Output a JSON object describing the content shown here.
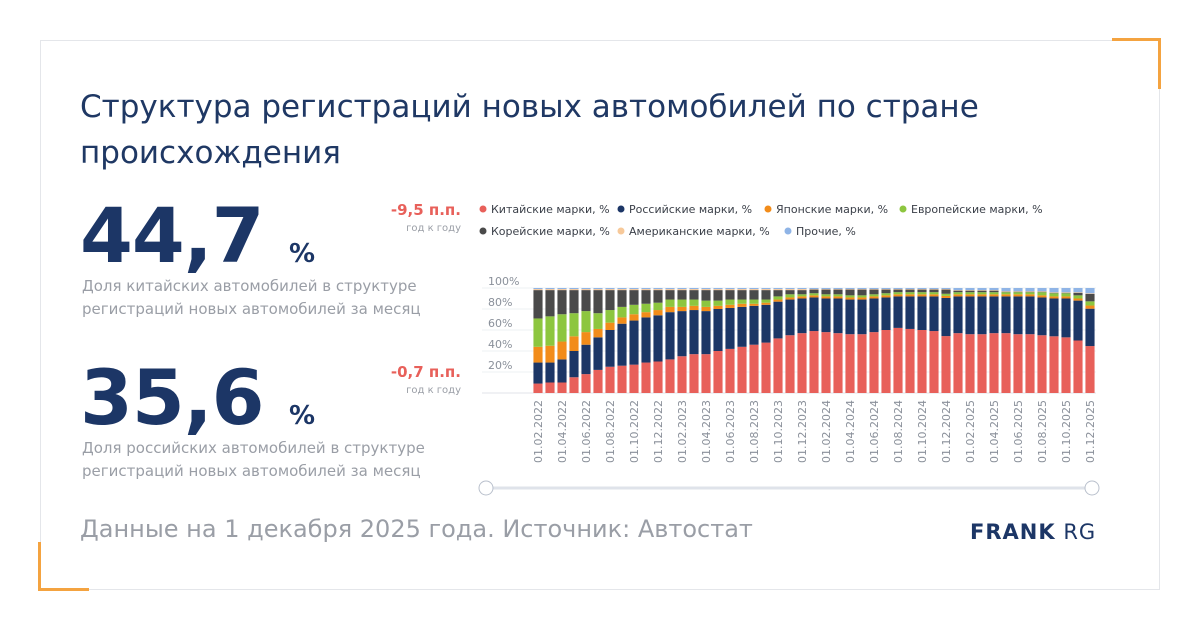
{
  "title_lines": [
    "Структура регистраций новых автомобилей по стране",
    "происхождения"
  ],
  "stats": [
    {
      "value": "44,7",
      "unit": "%",
      "description_lines": [
        "Доля китайских автомобилей в структуре",
        "регистраций новых автомобилей за месяц"
      ],
      "change": "-9,5 п.п.",
      "change_note": "год к году"
    },
    {
      "value": "35,6",
      "unit": "%",
      "description_lines": [
        "Доля российских автомобилей в структуре",
        "регистраций новых автомобилей за месяц"
      ],
      "change": "-0,7 п.п.",
      "change_note": "год к году"
    }
  ],
  "footer": "Данные на 1 декабря 2025 года. Источник: Автостат",
  "logo": {
    "bold": "FRANK",
    "light": "RG"
  },
  "chart_data": {
    "type": "stacked_bar",
    "categories": [
      "01.02.2022",
      null,
      "01.04.2022",
      null,
      "01.06.2022",
      null,
      "01.08.2022",
      null,
      "01.10.2022",
      null,
      "01.12.2022",
      null,
      "01.02.2023",
      null,
      "01.04.2023",
      null,
      "01.06.2023",
      null,
      "01.08.2023",
      null,
      "01.10.2023",
      null,
      "01.12.2023",
      null,
      "01.02.2024",
      null,
      "01.04.2024",
      null,
      "01.06.2024",
      null,
      "01.08.2024",
      null,
      "01.10.2024",
      null,
      "01.12.2024",
      null,
      "01.02.2025",
      null,
      "01.04.2025",
      null,
      "01.06.2025",
      null,
      "01.08.2025",
      null,
      "01.10.2025",
      null,
      "01.12.2025"
    ],
    "ylim": [
      0,
      100
    ],
    "yticks": [
      {
        "value": 20,
        "label": "20%"
      },
      {
        "value": 40,
        "label": "40%"
      },
      {
        "value": 60,
        "label": "60%"
      },
      {
        "value": 80,
        "label": "80%"
      },
      {
        "value": 100,
        "label": "100%"
      }
    ],
    "series": [
      {
        "name": "Китайские марки, %",
        "color": "#e8605a",
        "values": [
          9,
          10,
          10,
          15,
          18,
          22,
          25,
          26,
          27,
          29,
          30,
          32,
          35,
          37,
          37,
          40,
          42,
          44,
          46,
          48,
          52,
          55,
          57,
          59,
          58,
          57,
          56,
          56,
          58,
          60,
          62,
          61,
          60,
          59,
          54.2,
          57,
          56,
          56,
          57,
          57,
          56,
          56,
          55,
          54,
          53,
          50,
          44.7
        ]
      },
      {
        "name": "Российские марки, %",
        "color": "#1c3666",
        "values": [
          20,
          19,
          22,
          25,
          28,
          31,
          35,
          40,
          42,
          43,
          44,
          45,
          43,
          42,
          41,
          40,
          39,
          38,
          37,
          36,
          35,
          34,
          33,
          32,
          32,
          33,
          33,
          33,
          32,
          31,
          30,
          31,
          32,
          33,
          36.3,
          35,
          36,
          36,
          35,
          35,
          36,
          36,
          36,
          36,
          37,
          38,
          35.6
        ]
      },
      {
        "name": "Японские марки, %",
        "color": "#f28c1a",
        "values": [
          15,
          16,
          17,
          14,
          12,
          8,
          7,
          6,
          6,
          5,
          5,
          5,
          4,
          4,
          4,
          3,
          3,
          3,
          2,
          2,
          2,
          2,
          2,
          2,
          2,
          2,
          2,
          2,
          2,
          2,
          2,
          2,
          2,
          2,
          2,
          2,
          2,
          2,
          2,
          2,
          2,
          2,
          2,
          2,
          2,
          2,
          3
        ]
      },
      {
        "name": "Европейские марки, %",
        "color": "#8dc63f",
        "values": [
          27,
          28,
          26,
          22,
          20,
          15,
          12,
          10,
          9,
          8,
          7,
          7,
          7,
          6,
          6,
          5,
          5,
          4,
          4,
          3,
          3,
          3,
          2,
          2,
          2,
          2,
          2,
          2,
          2,
          2,
          2,
          2,
          2,
          2,
          2,
          2,
          2,
          2,
          2,
          2,
          2,
          2,
          3,
          3,
          3,
          3,
          4
        ]
      },
      {
        "name": "Корейские марки, %",
        "color": "#4a4a4a",
        "values": [
          27,
          25,
          23,
          22,
          20,
          22,
          19,
          16,
          14,
          13,
          12,
          9,
          9,
          9,
          10,
          10,
          9,
          9,
          9,
          9,
          6,
          4,
          4,
          3.5,
          4.5,
          4.5,
          5.5,
          5.5,
          4.5,
          3.5,
          2.5,
          2.5,
          2.5,
          2.5,
          4,
          1.5,
          1.5,
          1.5,
          1.5,
          0.5,
          0.5,
          0.5,
          0.5,
          0.5,
          0.5,
          2.5,
          7.2
        ]
      },
      {
        "name": "Американские марки, %",
        "color": "#f7c99a",
        "values": [
          1,
          1,
          1,
          1,
          1,
          1,
          1,
          1,
          1,
          1,
          1,
          1,
          1,
          1,
          1,
          1,
          1,
          1,
          1,
          1,
          1,
          1,
          1,
          0.5,
          0.5,
          0.5,
          0.5,
          0.5,
          0.5,
          0.5,
          0.5,
          0.5,
          0.5,
          0.5,
          0.5,
          0.5,
          0.5,
          0.5,
          0.5,
          0.5,
          0.5,
          0.5,
          0.5,
          0.5,
          0.5,
          0.5,
          0.5
        ]
      },
      {
        "name": "Прочие, %",
        "color": "#8fb4e6",
        "values": [
          1,
          1,
          1,
          1,
          1,
          1,
          1,
          1,
          1,
          1,
          1,
          1,
          1,
          1,
          1,
          1,
          1,
          1,
          1,
          1,
          1,
          1,
          1,
          1,
          1,
          1,
          1,
          1,
          1,
          1,
          1,
          1,
          1,
          1,
          1,
          2,
          2,
          2,
          2,
          3,
          3,
          3,
          3,
          4,
          4,
          4,
          5
        ]
      }
    ]
  }
}
